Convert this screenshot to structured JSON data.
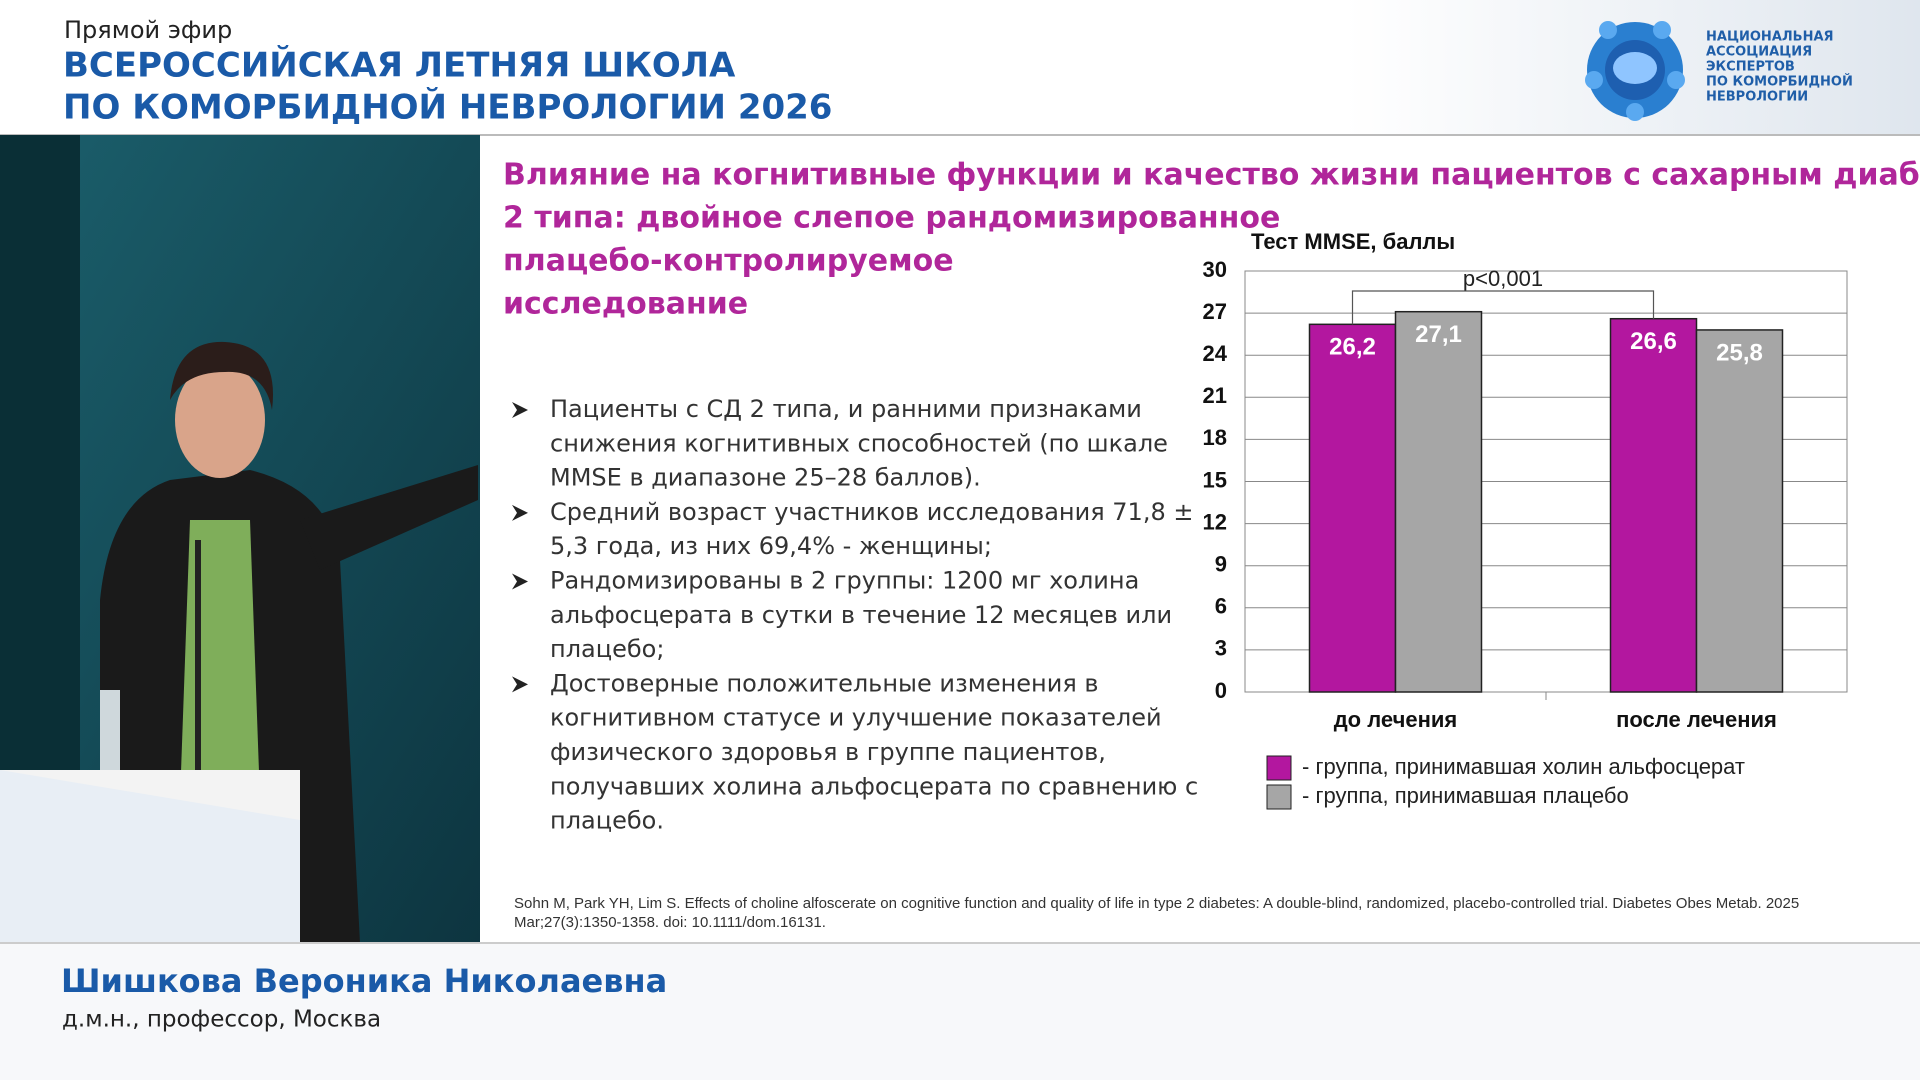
{
  "header": {
    "live": "Прямой эфир",
    "title_lines": [
      "ВСЕРОССИЙСКАЯ ЛЕТНЯЯ ШКОЛА",
      "ПО КОМОРБИДНОЙ НЕВРОЛОГИИ 2026"
    ],
    "logo_lines": [
      "НАЦИОНАЛЬНАЯ",
      "АССОЦИАЦИЯ",
      "ЭКСПЕРТОВ",
      "ПО КОМОРБИДНОЙ",
      "НЕВРОЛОГИИ"
    ]
  },
  "slide": {
    "title_lines": [
      "Влияние  на когнитивные функции и качество жизни  пациентов с сахарным диабетом",
      "2 типа:  двойное слепое рандомизированное",
      "плацебо-контролируемое",
      "исследование"
    ],
    "bullets": [
      [
        "Пациенты с СД 2 типа, и ранними признаками",
        "снижения когнитивных способностей (по шкале",
        "MMSE в диапазоне 25–28 баллов)."
      ],
      [
        "Средний возраст участников исследования  71,8 ±",
        "5,3 года, из них 69,4% - женщины;"
      ],
      [
        "Рандомизированы в 2 группы:  1200 мг холина",
        "альфосцерата в сутки в течение 12 месяцев или",
        "плацебо;"
      ],
      [
        "Достоверные положительные изменения в",
        "когнитивном статусе и улучшение показателей",
        "физического здоровья в группе пациентов,",
        "получавших холина альфосцерата по сравнению с",
        "плацебо."
      ]
    ],
    "reference_lines": [
      "Sohn M, Park YH, Lim S. Effects of choline alfoscerate on cognitive function and quality of life in type 2 diabetes: A double-blind, randomized, placebo-controlled trial. Diabetes Obes Metab. 2025",
      "Mar;27(3):1350-1358. doi: 10.1111/dom.16131."
    ]
  },
  "chart_data": {
    "type": "bar",
    "title": "Тест MMSE, баллы",
    "annotation": "p<0,001",
    "categories": [
      "до лечения",
      "после лечения"
    ],
    "series": [
      {
        "name": "- группа, принимавшая холин альфосцерат",
        "color": "#b3179f",
        "values": [
          26.2,
          26.6
        ],
        "value_labels": [
          "26,2",
          "26,6"
        ]
      },
      {
        "name": "- группа, принимавшая плацебо",
        "color": "#a6a6a6",
        "values": [
          27.1,
          25.8
        ],
        "value_labels": [
          "27,1",
          "25,8"
        ]
      }
    ],
    "ylim": [
      0,
      30
    ],
    "yticks": [
      0,
      3,
      6,
      9,
      12,
      15,
      18,
      21,
      24,
      27,
      30
    ],
    "grid": true
  },
  "speaker": {
    "name": "Шишкова Вероника Николаевна",
    "role": "д.м.н., профессор, Москва"
  }
}
